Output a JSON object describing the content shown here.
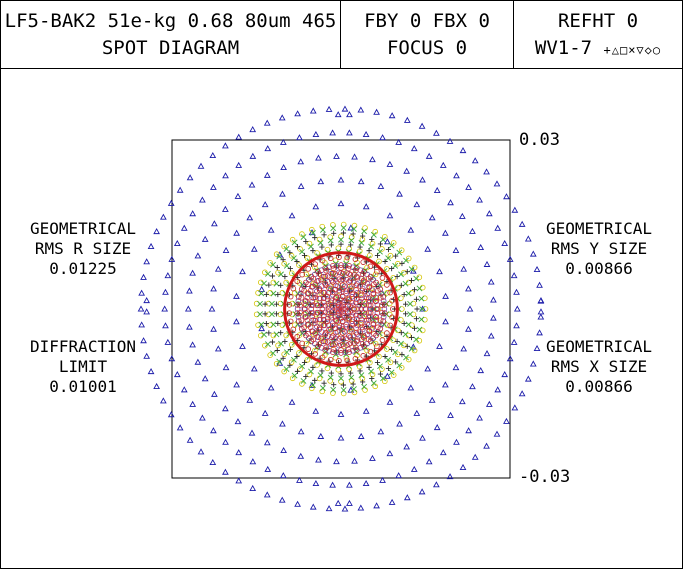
{
  "header": {
    "lens_line1": "LF5-BAK2 51e-kg 0.68 80um 465",
    "lens_line2": "SPOT DIAGRAM",
    "field_line1": "FBY 0 FBX 0",
    "field_line2": "FOCUS 0",
    "ref_line1": "REFHT 0",
    "ref_line2_text": "WV1-7",
    "ref_line2_symbols": "+△□×▽◇○"
  },
  "left_stats": {
    "rms_r": {
      "line1": "GEOMETRICAL",
      "line2": "RMS R SIZE",
      "value": "0.01225"
    },
    "diffraction": {
      "line1": "DIFFRACTION",
      "line2": "LIMIT",
      "value": "0.01001"
    }
  },
  "right_stats": {
    "rms_y": {
      "line1": "GEOMETRICAL",
      "line2": "RMS Y SIZE",
      "value": "0.00866"
    },
    "rms_x": {
      "line1": "GEOMETRICAL",
      "line2": "RMS X SIZE",
      "value": "0.00866"
    }
  },
  "axis": {
    "top_label": "0.03",
    "bottom_label": "-0.03"
  },
  "chart_data": {
    "type": "scatter",
    "xlim": [
      -0.03,
      0.03
    ],
    "ylim": [
      -0.03,
      0.03
    ],
    "diffraction_circle_radius": 0.01001,
    "series": [
      {
        "marker": "triangle",
        "color": "#1c1caa",
        "ring_step": 0.0042,
        "ring_count": 6,
        "ring_start": 0.0145,
        "points_per_ring_base": 24
      },
      {
        "marker": "circle",
        "color": "#d4c400",
        "ring_step": 0.0021,
        "ring_count": 7,
        "ring_start": 0.0024,
        "points_per_ring_base": 10
      },
      {
        "marker": "cross",
        "color": "#3aa83a",
        "ring_step": 0.0021,
        "ring_count": 7,
        "ring_start": 0.0018,
        "points_per_ring_base": 10
      },
      {
        "marker": "plus",
        "color": "#2a2a2a",
        "ring_step": 0.002,
        "ring_count": 7,
        "ring_start": 0.0015,
        "points_per_ring_base": 10
      },
      {
        "marker": "circle",
        "color": "#c02020",
        "ring_step": 0.0014,
        "ring_count": 7,
        "ring_start": 0.0008,
        "points_per_ring_base": 8
      },
      {
        "marker": "circle",
        "color": "#6a3aa0",
        "ring_step": 0.0012,
        "ring_count": 7,
        "ring_start": 0.0005,
        "points_per_ring_base": 7
      },
      {
        "marker": "circle",
        "color": "#d03030",
        "ring_step": 0.001,
        "ring_count": 8,
        "ring_start": 0.0003,
        "points_per_ring_base": 6
      }
    ]
  }
}
